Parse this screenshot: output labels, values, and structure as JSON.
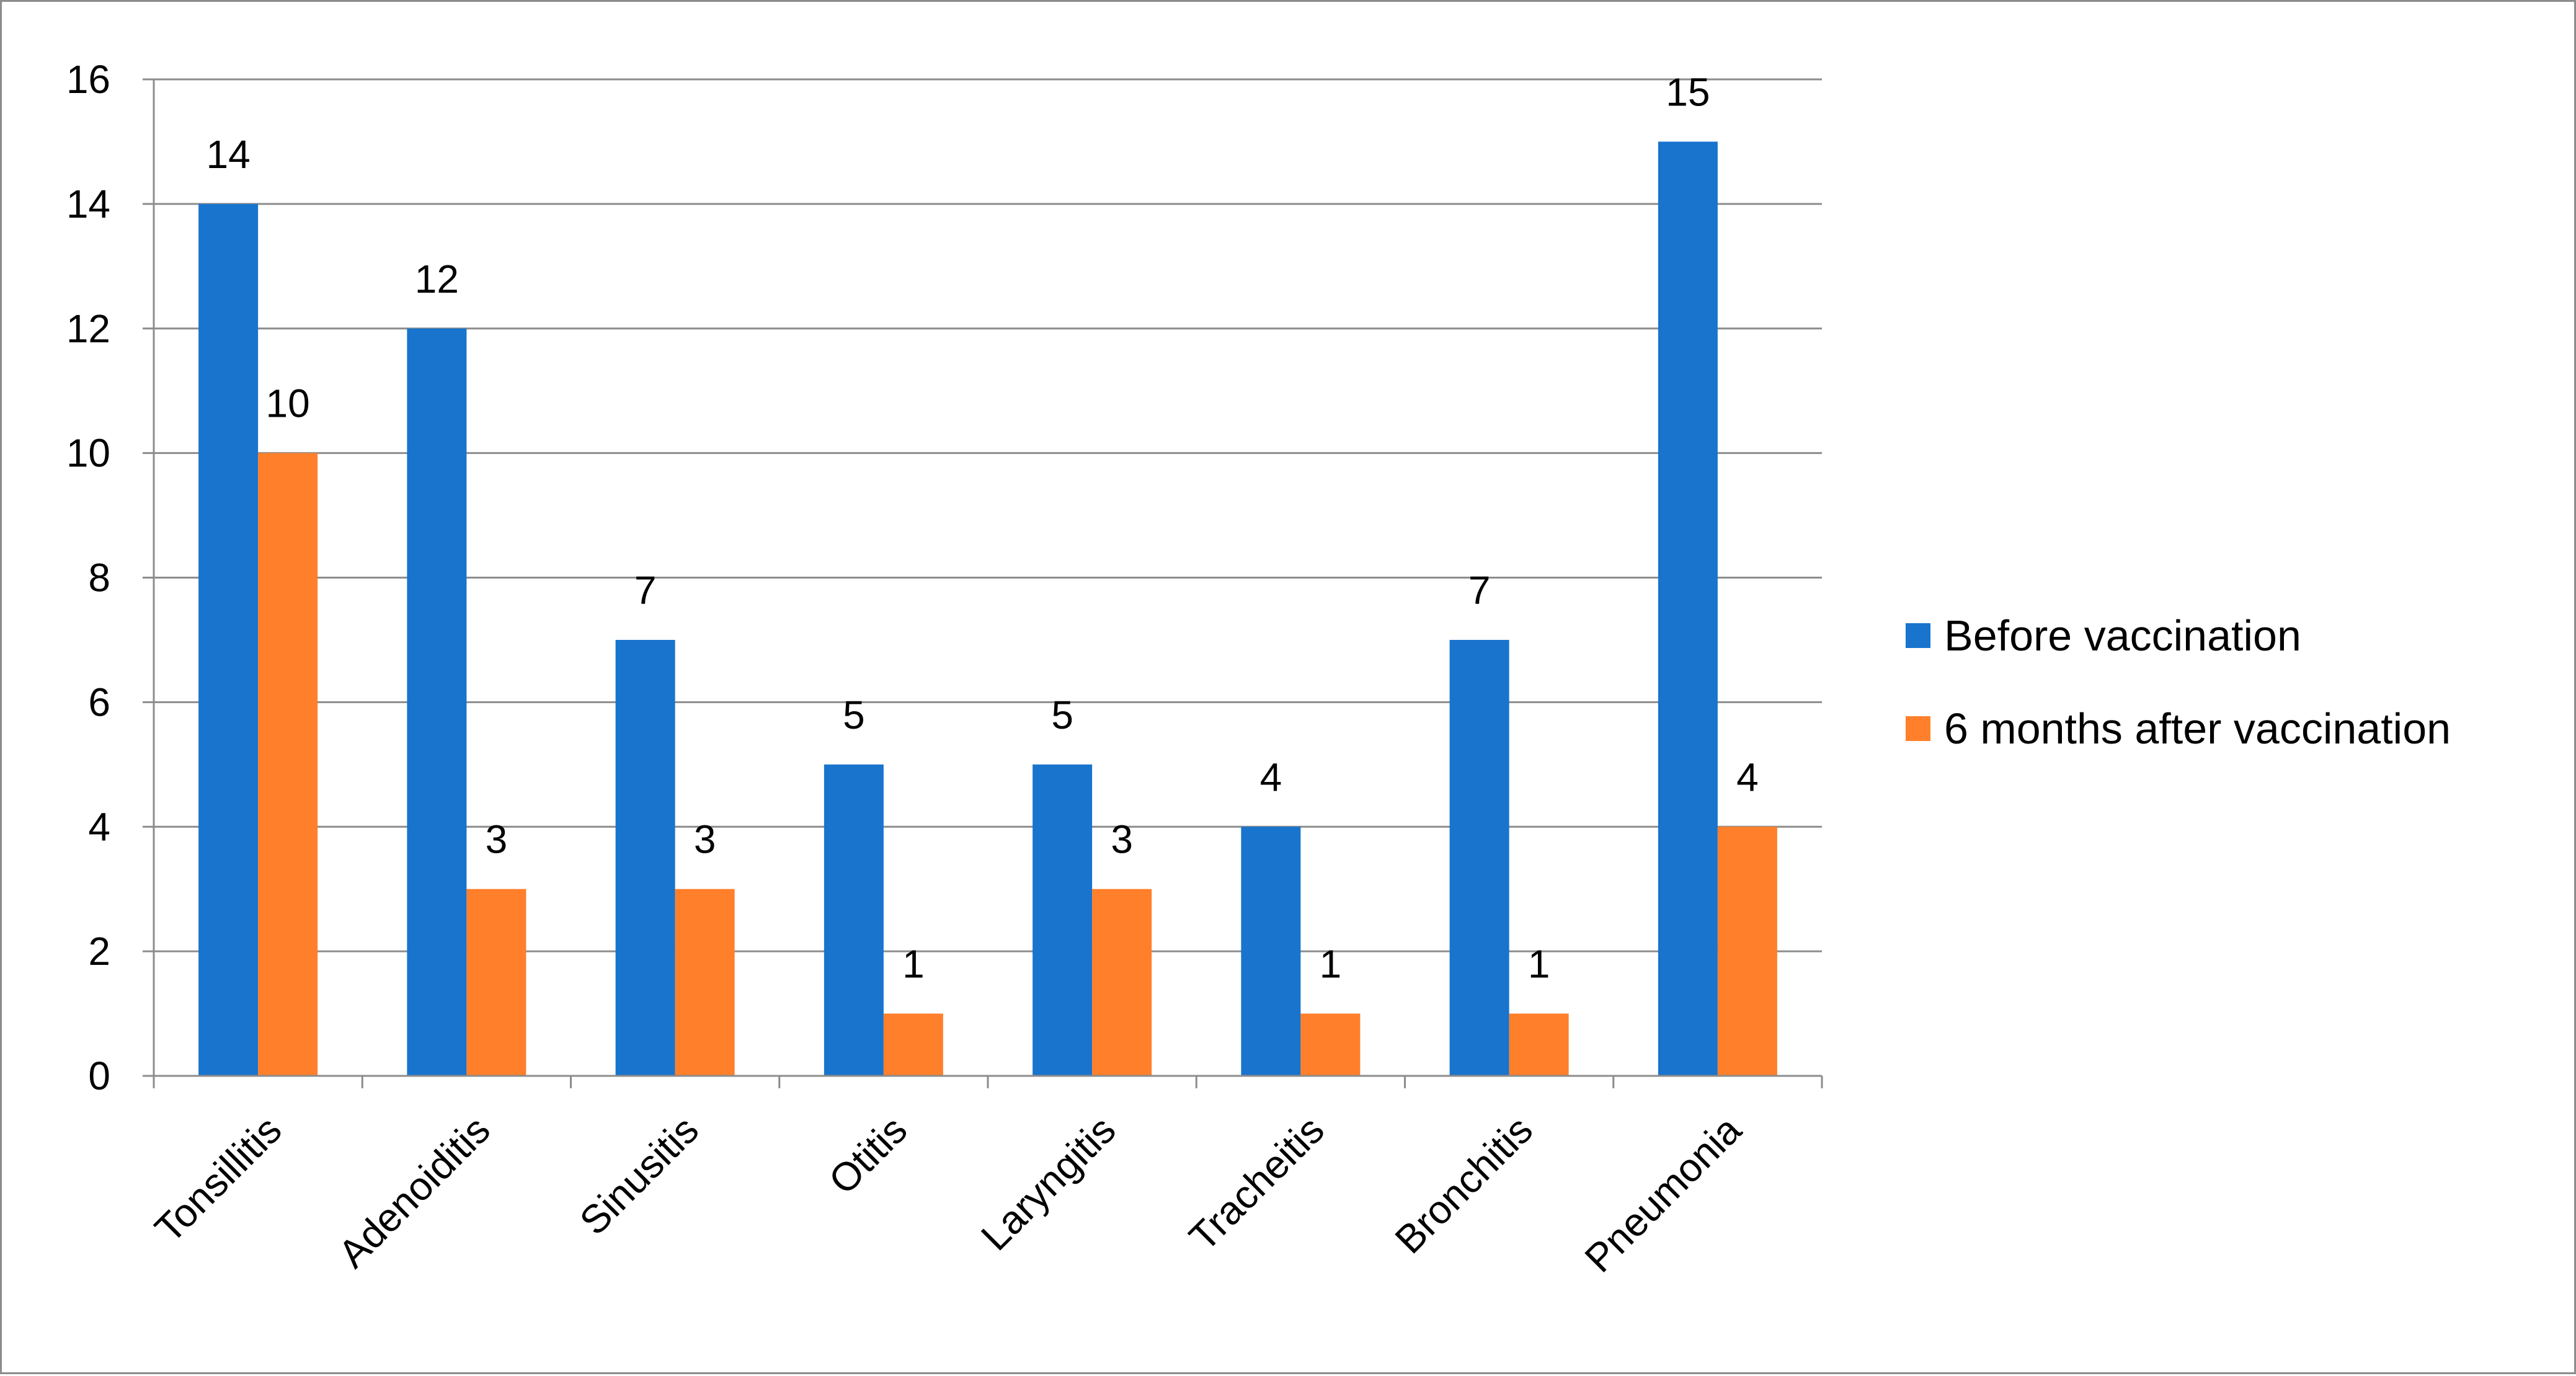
{
  "chart_data": {
    "type": "bar",
    "categories": [
      "Tonsillitis",
      "Adenoiditis",
      "Sinusitis",
      "Otitis",
      "Laryngitis",
      "Tracheitis",
      "Bronchitis",
      "Pneumonia"
    ],
    "series": [
      {
        "name": "Before vaccination",
        "values": [
          14,
          12,
          7,
          5,
          5,
          4,
          7,
          15
        ],
        "color": "#1874CD"
      },
      {
        "name": "6 months after vaccination",
        "values": [
          10,
          3,
          3,
          1,
          3,
          1,
          1,
          4
        ],
        "color": "#FF7F2A"
      }
    ],
    "title": "",
    "xlabel": "",
    "ylabel": "",
    "ylim": [
      0,
      16
    ],
    "yticks": [
      0,
      2,
      4,
      6,
      8,
      10,
      12,
      14,
      16
    ],
    "grid": true,
    "legend": "right"
  }
}
